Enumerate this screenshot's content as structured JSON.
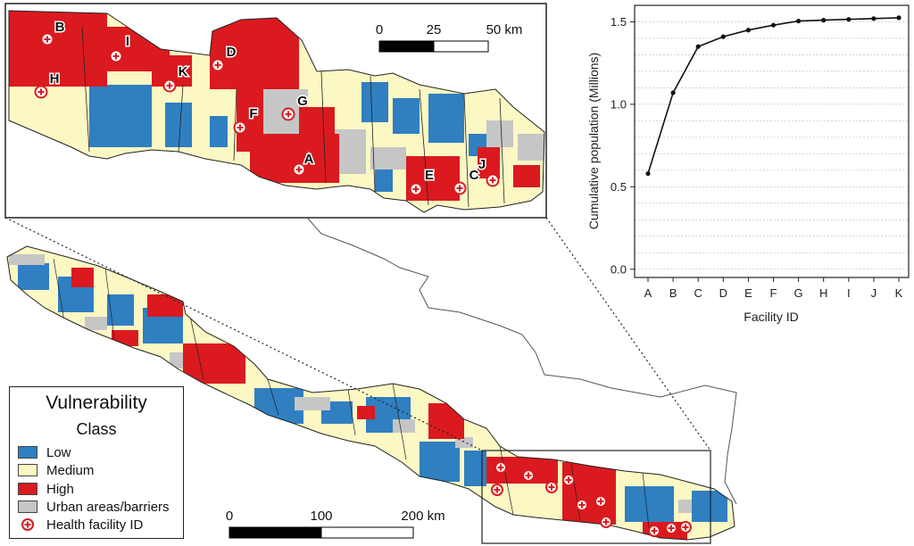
{
  "legend": {
    "title": "Vulnerability",
    "subtitle": "Class",
    "items": [
      {
        "label": "Low",
        "color": "#2f7fc1"
      },
      {
        "label": "Medium",
        "color": "#fcf8c4"
      },
      {
        "label": "High",
        "color": "#da1a1f"
      },
      {
        "label": "Urban areas/barriers",
        "color": "#c6c6c6"
      },
      {
        "label": "Health facility ID",
        "marker": "health-facility-icon"
      }
    ]
  },
  "inset_scale": {
    "labels": [
      "0",
      "25",
      "50 km"
    ]
  },
  "main_scale": {
    "labels": [
      "0",
      "100",
      "200 km"
    ]
  },
  "facilities": [
    "A",
    "B",
    "C",
    "D",
    "E",
    "F",
    "G",
    "H",
    "I",
    "J",
    "K"
  ],
  "chart_data": {
    "type": "line",
    "categories": [
      "A",
      "B",
      "C",
      "D",
      "E",
      "F",
      "G",
      "H",
      "I",
      "J",
      "K"
    ],
    "values": [
      0.58,
      1.07,
      1.35,
      1.41,
      1.45,
      1.48,
      1.505,
      1.51,
      1.515,
      1.52,
      1.525
    ],
    "xlabel": "Facility ID",
    "ylabel": "Cumulative population (Millions)",
    "ylim": [
      -0.05,
      1.6
    ],
    "yticks": [
      "0.0",
      "0.5",
      "1.0",
      "1.5"
    ],
    "grid": true
  }
}
